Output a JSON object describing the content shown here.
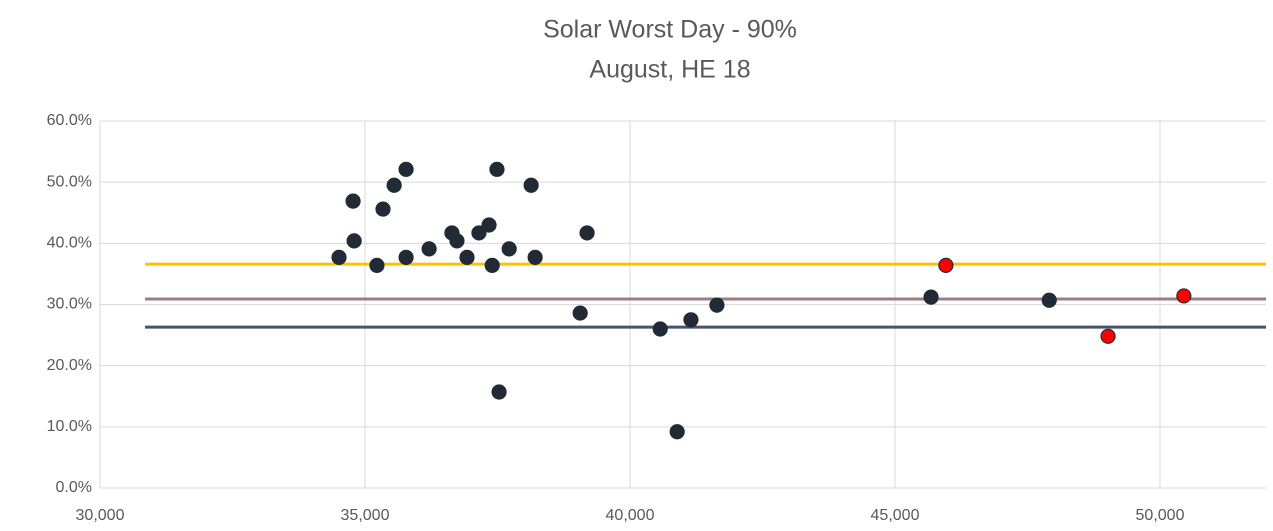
{
  "chart_data": {
    "type": "scatter",
    "title": "Solar Worst Day - 90%",
    "subtitle": "August, HE 18",
    "xlim": [
      30000,
      52000
    ],
    "xticks": [
      {
        "value": 30000,
        "label": "30,000"
      },
      {
        "value": 35000,
        "label": "35,000"
      },
      {
        "value": 40000,
        "label": "40,000"
      },
      {
        "value": 45000,
        "label": "45,000"
      },
      {
        "value": 50000,
        "label": "50,000"
      }
    ],
    "ylim": [
      0,
      60
    ],
    "yticks": [
      {
        "value": 0,
        "label": "0.0%"
      },
      {
        "value": 10,
        "label": "10.0%"
      },
      {
        "value": 20,
        "label": "20.0%"
      },
      {
        "value": 30,
        "label": "30.0%"
      },
      {
        "value": 40,
        "label": "40.0%"
      },
      {
        "value": 50,
        "label": "50.0%"
      },
      {
        "value": 60,
        "label": "60.0%"
      }
    ],
    "grid": true,
    "series": [
      {
        "kind": "marker",
        "color": "#222a35",
        "x": [
          34510,
          34775,
          34795,
          35340,
          35225,
          35550,
          35775,
          35775,
          36210,
          36640,
          36735,
          36925,
          37150,
          37340,
          37400,
          37490,
          37720,
          38135,
          38210,
          37530,
          39190,
          39060,
          40570,
          40890,
          41150,
          41640,
          45680,
          47910
        ],
        "values": [
          37.7,
          46.9,
          40.4,
          45.6,
          36.4,
          49.5,
          52.1,
          37.7,
          39.1,
          41.7,
          40.4,
          37.7,
          41.7,
          43.0,
          36.4,
          52.1,
          39.1,
          49.5,
          37.7,
          15.7,
          41.7,
          28.6,
          26.0,
          9.2,
          27.5,
          29.9,
          31.2,
          30.7
        ]
      },
      {
        "kind": "marker",
        "color": "#ff0000",
        "x": [
          45960,
          49020,
          50450
        ],
        "values": [
          36.4,
          24.8,
          31.4
        ]
      },
      {
        "kind": "line",
        "color": "#ffc000",
        "x": [
          30850,
          52000
        ],
        "values": [
          36.6,
          36.6
        ]
      },
      {
        "kind": "line",
        "color": "#9e7c86",
        "x": [
          30850,
          52000
        ],
        "values": [
          30.9,
          30.9
        ]
      },
      {
        "kind": "line",
        "color": "#44546a",
        "x": [
          30850,
          52000
        ],
        "values": [
          26.3,
          26.3
        ]
      }
    ]
  }
}
